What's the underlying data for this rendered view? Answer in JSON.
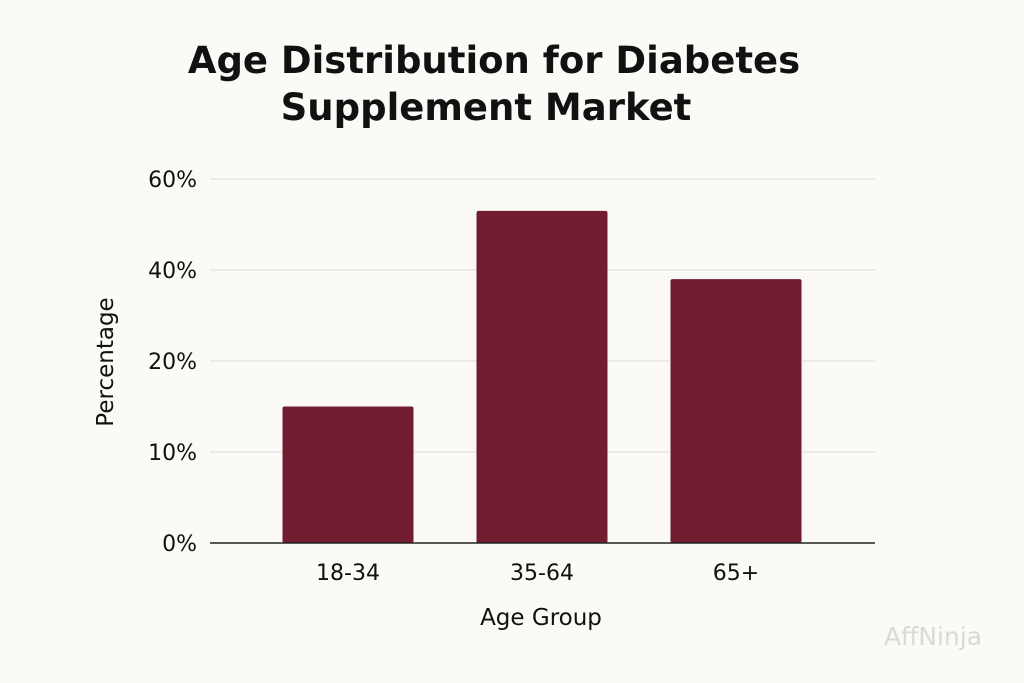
{
  "chart_data": {
    "type": "bar",
    "title_lines": [
      "Age Distribution for Diabetes",
      "Supplement Market"
    ],
    "categories": [
      "18-34",
      "35-64",
      "65+"
    ],
    "values": [
      15,
      53,
      38
    ],
    "xlabel": "Age Group",
    "ylabel": "Percentage",
    "yticks": [
      0,
      10,
      20,
      40,
      60
    ],
    "ytick_labels": [
      "0%",
      "10%",
      "20%",
      "40%",
      "60%"
    ],
    "ylim": [
      0,
      60
    ],
    "grid": true,
    "bar_color": "#721c2f"
  },
  "watermark": "AffNinja"
}
